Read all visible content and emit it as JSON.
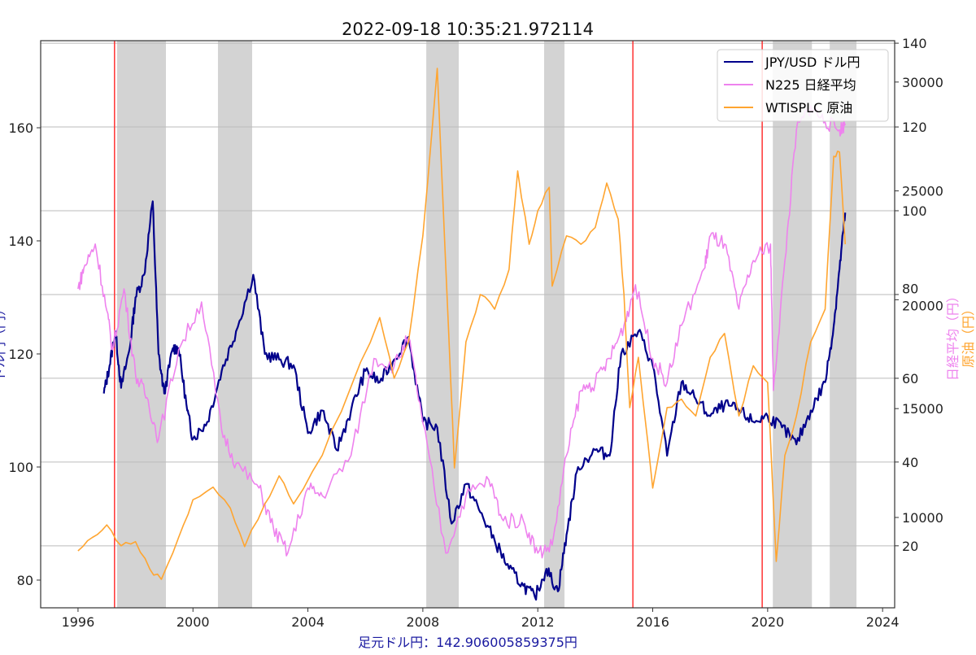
{
  "chart_data": {
    "type": "line",
    "title": "2022-09-18 10:35:21.972114",
    "xlabel": "足元ドル円：142.906005859375円",
    "ylabel_left": "ドル円（円）",
    "ylabel_right_nikkei": "日経平均（円）",
    "ylabel_right_oil": "原油（円）",
    "xlim": [
      1994.7,
      2024.42
    ],
    "x_ticks": [
      "1996",
      "2000",
      "2004",
      "2008",
      "2012",
      "2016",
      "2020",
      "2024"
    ],
    "x_tick_values": [
      1996,
      2000,
      2004,
      2008,
      2012,
      2016,
      2020,
      2024
    ],
    "left_axis": {
      "ylim": [
        75.1,
        175.4
      ],
      "ticks": [
        80,
        100,
        120,
        140,
        160
      ],
      "tick_labels": [
        "80",
        "100",
        "120",
        "140",
        "160"
      ]
    },
    "nikkei_axis": {
      "ylim": [
        5850,
        31900
      ],
      "ticks": [
        10000,
        15000,
        20000,
        25000,
        30000
      ],
      "tick_labels": [
        "10000",
        "15000",
        "20000",
        "25000",
        "30000"
      ]
    },
    "oil_axis": {
      "ylim": [
        5.2,
        140.6
      ],
      "ticks": [
        20,
        40,
        60,
        80,
        100,
        120,
        140
      ],
      "tick_labels": [
        "20",
        "40",
        "60",
        "80",
        "100",
        "120",
        "140"
      ]
    },
    "grid": "horizontal, oil axis",
    "legend": {
      "placement": "top-right",
      "entries": [
        "JPY/USD ドル円",
        "N225 日経平均",
        "WTISPLC 原油"
      ]
    },
    "colors": {
      "jpy": "#00008b",
      "nikkei": "#ee82ee",
      "oil": "#ffa530",
      "event_line": "#ff3333",
      "band": "#d3d3d3",
      "xlabel": "#1a1aa0"
    },
    "event_lines": [
      1997.27,
      2015.31,
      2019.81
    ],
    "shaded_bands": [
      [
        1997.36,
        1999.06
      ],
      [
        2000.87,
        2002.06
      ],
      [
        2008.12,
        2009.25
      ],
      [
        2012.22,
        2012.93
      ],
      [
        2020.18,
        2021.54
      ],
      [
        2022.16,
        2023.09
      ]
    ],
    "series": [
      {
        "name": "JPY/USD ドル円",
        "axis": "left",
        "x": [
          1996.9,
          1997.1,
          1997.3,
          1997.5,
          1997.8,
          1998.0,
          1998.3,
          1998.6,
          1998.8,
          1999.0,
          1999.3,
          1999.5,
          1999.8,
          2000.0,
          2000.5,
          2001.0,
          2001.5,
          2002.1,
          2002.5,
          2003.0,
          2003.5,
          2004.0,
          2004.5,
          2005.0,
          2005.5,
          2006.0,
          2006.5,
          2007.0,
          2007.5,
          2008.0,
          2008.5,
          2009.0,
          2009.5,
          2010.0,
          2010.5,
          2011.0,
          2011.5,
          2011.9,
          2012.3,
          2012.7,
          2013.0,
          2013.4,
          2014.0,
          2014.5,
          2014.9,
          2015.5,
          2016.0,
          2016.5,
          2017.0,
          2017.5,
          2018.0,
          2018.5,
          2019.0,
          2019.5,
          2020.0,
          2020.5,
          2021.0,
          2021.5,
          2022.0,
          2022.3,
          2022.5,
          2022.7
        ],
        "values": [
          113,
          118,
          124,
          114,
          121,
          130,
          134,
          147,
          120,
          113,
          121,
          121,
          110,
          105,
          108,
          117,
          124,
          134,
          120,
          119,
          118,
          106,
          110,
          103,
          110,
          117,
          115,
          119,
          123,
          108,
          107,
          90,
          97,
          92,
          87,
          82,
          79,
          77,
          82,
          78,
          88,
          100,
          103,
          102,
          120,
          124,
          118,
          102,
          115,
          112,
          109,
          111,
          110,
          108,
          109,
          107,
          104,
          110,
          115,
          125,
          135,
          145
        ]
      },
      {
        "name": "N225 日経平均",
        "axis": "nikkei",
        "x": [
          1996.0,
          1996.2,
          1996.6,
          1997.0,
          1997.2,
          1997.6,
          1998.0,
          1998.4,
          1998.8,
          1999.5,
          2000.3,
          2001.0,
          2001.5,
          2002.3,
          2002.8,
          2003.3,
          2004.0,
          2004.5,
          2005.5,
          2006.3,
          2007.0,
          2007.5,
          2008.0,
          2008.8,
          2009.5,
          2010.3,
          2010.8,
          2011.5,
          2012.0,
          2012.5,
          2013.0,
          2013.5,
          2014.0,
          2014.5,
          2015.0,
          2015.4,
          2016.0,
          2016.5,
          2017.0,
          2017.8,
          2018.0,
          2018.5,
          2019.0,
          2019.5,
          2020.1,
          2020.2,
          2020.6,
          2021.0,
          2021.5,
          2022.0,
          2022.5,
          2022.7
        ],
        "values": [
          20500,
          21440,
          22560,
          19500,
          17700,
          20500,
          16580,
          15500,
          13600,
          17700,
          19900,
          14000,
          12470,
          11350,
          9500,
          8360,
          11350,
          11000,
          12850,
          17300,
          16950,
          18260,
          14340,
          8360,
          11000,
          11720,
          9850,
          9850,
          8360,
          8730,
          12850,
          15830,
          16200,
          17300,
          18820,
          20690,
          17300,
          16200,
          18820,
          21440,
          22930,
          22560,
          19570,
          21800,
          22560,
          15830,
          21800,
          27800,
          28900,
          28170,
          27800,
          28100
        ]
      },
      {
        "name": "WTISPLC 原油",
        "axis": "oil",
        "x": [
          1996.0,
          1996.5,
          1997.0,
          1997.5,
          1998.0,
          1998.5,
          1998.9,
          1999.5,
          2000.0,
          2000.7,
          2001.3,
          2001.8,
          2002.5,
          2003.0,
          2003.5,
          2004.5,
          2005.5,
          2006.5,
          2007.0,
          2007.5,
          2008.0,
          2008.5,
          2008.9,
          2009.1,
          2009.5,
          2010.0,
          2010.5,
          2011.0,
          2011.3,
          2011.7,
          2012.0,
          2012.4,
          2012.5,
          2013.0,
          2013.5,
          2014.0,
          2014.4,
          2014.8,
          2015.0,
          2015.2,
          2015.5,
          2016.0,
          2016.5,
          2017.0,
          2017.5,
          2018.0,
          2018.5,
          2019.0,
          2019.5,
          2020.0,
          2020.3,
          2020.6,
          2021.0,
          2021.5,
          2022.0,
          2022.3,
          2022.5,
          2022.7
        ],
        "values": [
          18.8,
          22,
          25,
          20,
          21,
          14.4,
          12,
          22,
          31,
          34,
          29,
          19.8,
          30,
          36.7,
          30,
          41.6,
          58,
          74.5,
          60,
          68.7,
          94,
          134,
          70.7,
          38.6,
          68.7,
          80,
          76.5,
          86,
          109.5,
          92,
          100,
          105.6,
          82,
          94,
          92,
          96,
          106.6,
          98,
          80,
          53,
          65,
          33.8,
          53,
          55,
          51,
          65,
          70.7,
          51,
          63,
          59,
          16.3,
          41.6,
          51,
          68.7,
          76.5,
          113,
          114,
          92
        ]
      }
    ]
  }
}
